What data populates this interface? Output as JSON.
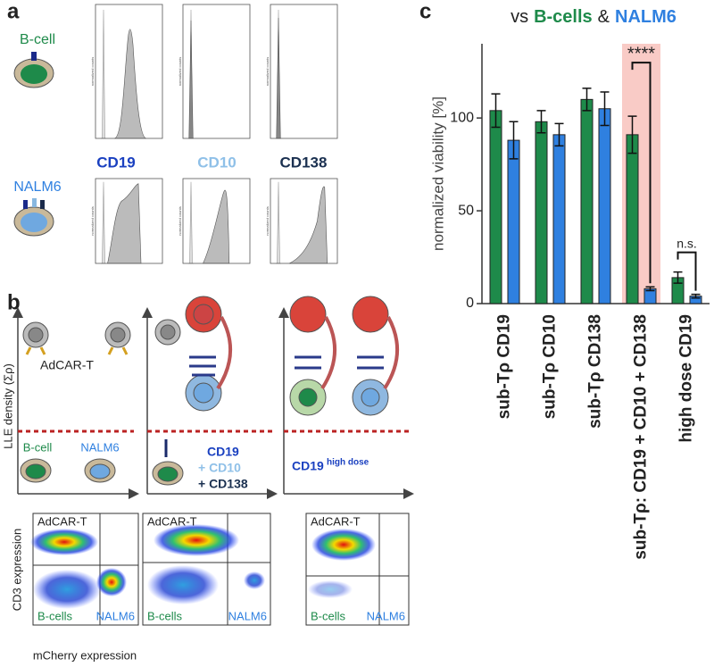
{
  "panel_labels": [
    "a",
    "b",
    "c"
  ],
  "panel_a": {
    "cells": [
      "B-cell",
      "NALM6"
    ],
    "markers": [
      "CD19",
      "CD10",
      "CD138"
    ],
    "hist_axis_label": "normalized counts"
  },
  "panel_b": {
    "y_axis": "LLE density (Σρ)",
    "adcar": "AdCAR-T",
    "cells": [
      "B-cell",
      "NALM6"
    ],
    "combo": [
      "CD19",
      "+ CD10",
      "+ CD138"
    ],
    "high_dose": [
      "CD19",
      "high dose"
    ],
    "flow": {
      "gate_top": "AdCAR-T",
      "gate_left": "B-cells",
      "gate_right": "NALM6",
      "y_label": "CD3 expression",
      "x_label": "mCherry expression"
    }
  },
  "chart_data": {
    "type": "bar",
    "title_words": [
      "vs",
      "&"
    ],
    "ylabel": "normalized viability [%]",
    "categories": [
      "sub-Tρ CD19",
      "sub-Tρ CD10",
      "sub-Tρ CD138",
      "sub-Tρ: CD19 + CD10 + CD138",
      "high dose CD19"
    ],
    "series": [
      {
        "name": "B-cells",
        "color": "#1e8a4a",
        "values": [
          104,
          98,
          110,
          91,
          14
        ],
        "errors": [
          9,
          6,
          6,
          10,
          3
        ]
      },
      {
        "name": "NALM6",
        "color": "#2f80e0",
        "values": [
          88,
          91,
          105,
          8,
          4
        ],
        "errors": [
          10,
          6,
          9,
          1,
          1
        ]
      }
    ],
    "ylim": [
      0,
      140
    ],
    "yticks": [
      0,
      50,
      100
    ],
    "highlight_category": 3,
    "highlight_color": "#f9cbc6",
    "annotations": [
      {
        "text": "****",
        "category": 3
      },
      {
        "text": "n.s.",
        "category": 4
      }
    ]
  }
}
